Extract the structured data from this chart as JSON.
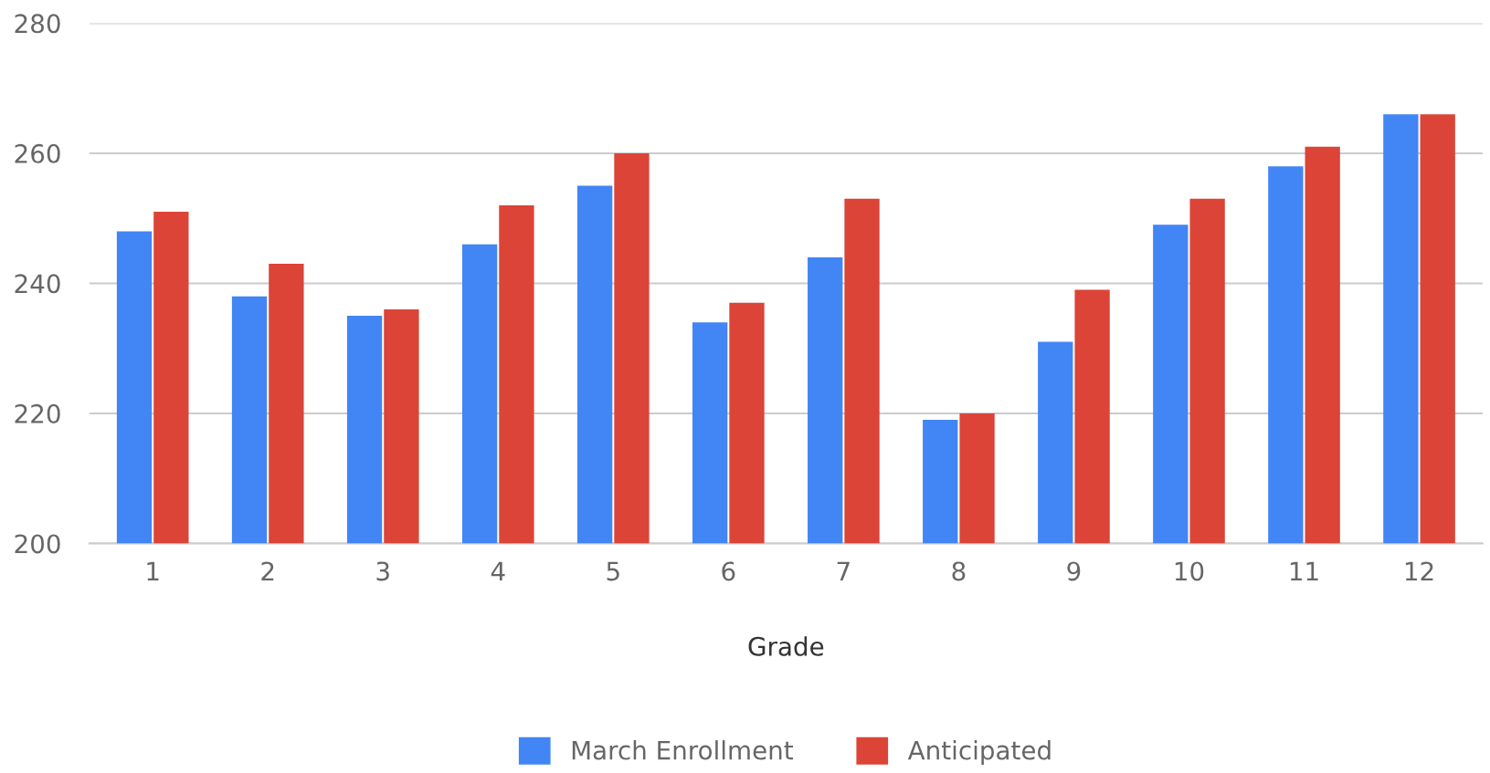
{
  "chart_data": {
    "type": "bar",
    "xlabel": "Grade",
    "categories": [
      "1",
      "2",
      "3",
      "4",
      "5",
      "6",
      "7",
      "8",
      "9",
      "10",
      "11",
      "12"
    ],
    "series": [
      {
        "name": "March Enrollment",
        "color": "#4285f4",
        "values": [
          248,
          238,
          235,
          246,
          255,
          234,
          244,
          219,
          231,
          249,
          258,
          266
        ]
      },
      {
        "name": "Anticipated",
        "color": "#db4437",
        "values": [
          251,
          243,
          236,
          252,
          260,
          237,
          253,
          220,
          239,
          253,
          261,
          266
        ]
      }
    ],
    "ylim": [
      200,
      280
    ],
    "yticks": [
      200,
      220,
      240,
      260,
      280
    ],
    "grid": "y",
    "legend": "bottom"
  }
}
